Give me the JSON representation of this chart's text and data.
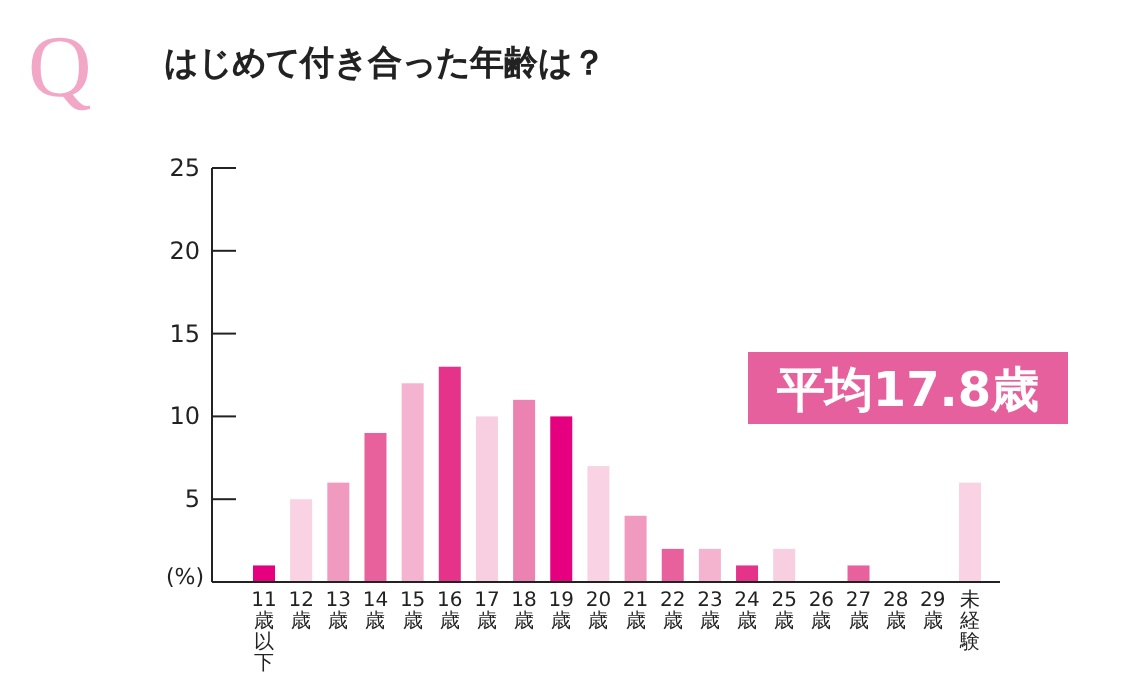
{
  "chart_data": {
    "type": "bar",
    "title": "はじめて付き合った年齢は？",
    "ylabel": "(%)",
    "annotations": [
      "Q",
      "平均17.8歳"
    ],
    "categories": [
      "11歳以下",
      "12歳",
      "13歳",
      "14歳",
      "15歳",
      "16歳",
      "17歳",
      "18歳",
      "19歳",
      "20歳",
      "21歳",
      "22歳",
      "23歳",
      "24歳",
      "25歳",
      "26歳",
      "27歳",
      "28歳",
      "29歳",
      "未経験"
    ],
    "values": [
      1,
      5,
      6,
      9,
      12,
      13,
      10,
      11,
      10,
      7,
      4,
      2,
      2,
      1,
      2,
      0,
      1,
      0,
      0,
      6
    ],
    "colors": [
      "#e4007f",
      "#f9d3e3",
      "#f09ac0",
      "#e8619d",
      "#f4b4d0",
      "#e5338a",
      "#f8cfe1",
      "#ec82b2",
      "#e4007f",
      "#f9d3e3",
      "#f09ac0",
      "#e8619d",
      "#f4b4d0",
      "#e5338a",
      "#f8cfe1",
      "#f8cfe1",
      "#e8619d",
      "#f9d3e3",
      "#f9d3e3",
      "#f9d3e3"
    ],
    "ylim": [
      0,
      25
    ],
    "yticks": [
      5,
      10,
      15,
      20,
      25
    ],
    "grid": false
  }
}
